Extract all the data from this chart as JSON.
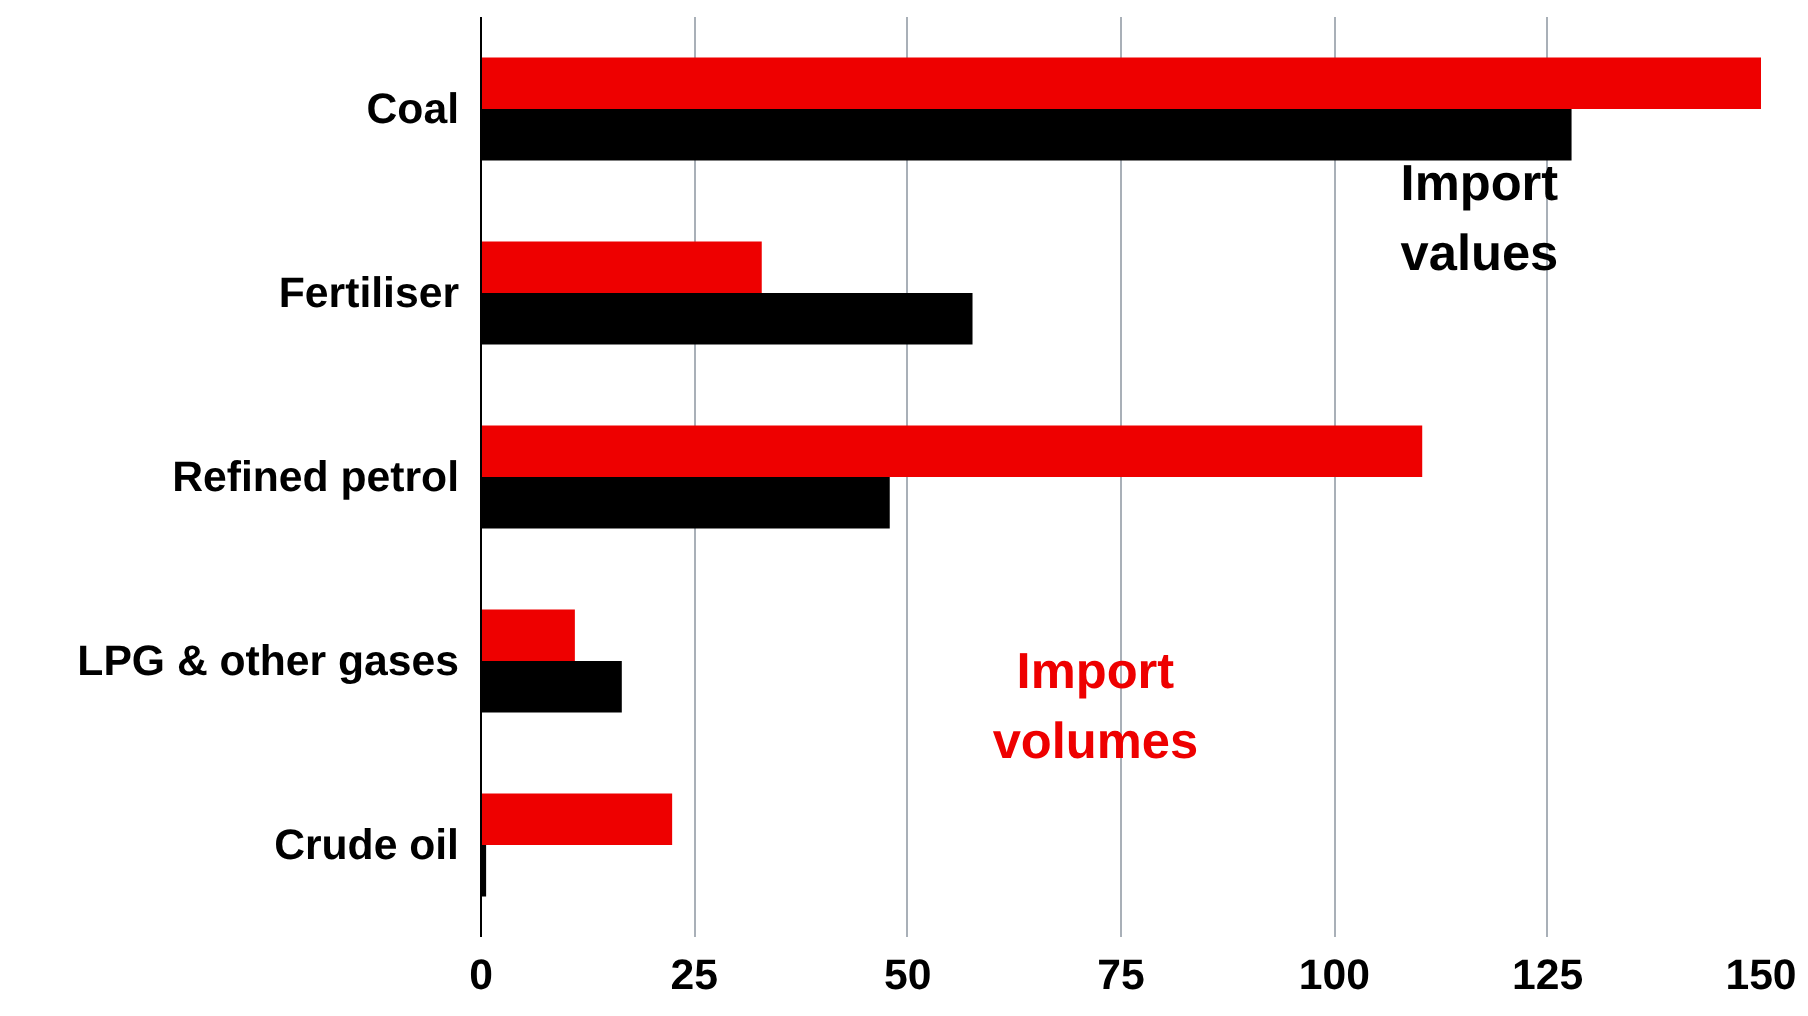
{
  "chart_data": {
    "type": "bar",
    "orientation": "horizontal",
    "categories": [
      "Coal",
      "Fertiliser",
      "Refined petrol",
      "LPG & other gases",
      "Crude oil"
    ],
    "series": [
      {
        "name": "Import volumes",
        "color": "#ee0000",
        "values": [
          150.0,
          32.9,
          110.3,
          11.0,
          22.4
        ]
      },
      {
        "name": "Import values",
        "color": "#000000",
        "values": [
          127.8,
          57.6,
          47.9,
          16.5,
          0.6
        ]
      }
    ],
    "xlim": [
      0,
      150
    ],
    "xticks": [
      0,
      25,
      50,
      75,
      100,
      125,
      150
    ],
    "grid": "x"
  }
}
